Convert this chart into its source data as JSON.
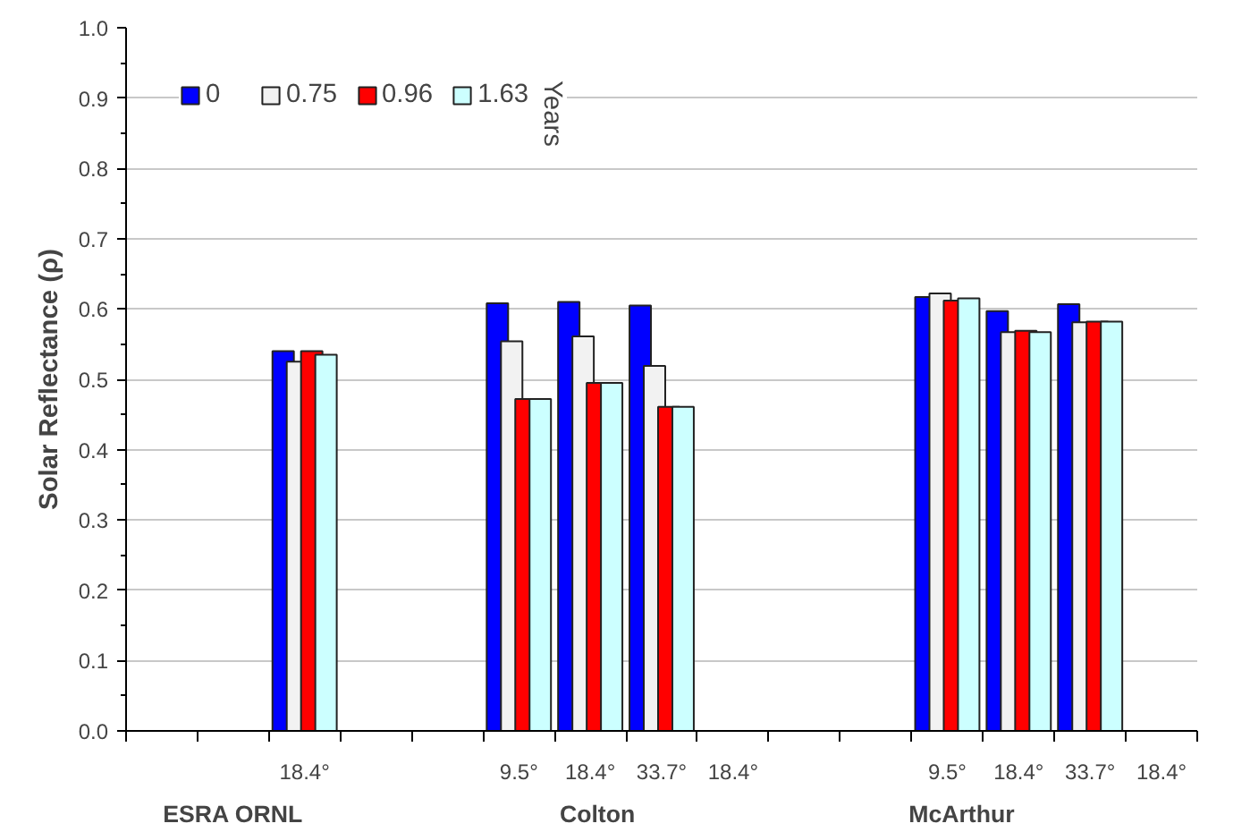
{
  "chart_data": {
    "type": "bar",
    "ylabel": "Solar Reflectance (ρ)",
    "legend_title": "Years",
    "categories": [
      null,
      null,
      "18.4°",
      null,
      null,
      "9.5°",
      "18.4°",
      "33.7°",
      "18.4°",
      null,
      null,
      "9.5°",
      "18.4°",
      "33.7°",
      "18.4°"
    ],
    "series": [
      {
        "name": "0",
        "color": "#0000ff",
        "values": [
          null,
          null,
          0.54,
          null,
          null,
          0.608,
          0.61,
          0.605,
          null,
          null,
          null,
          0.617,
          0.597,
          0.607,
          null
        ]
      },
      {
        "name": "0.75",
        "color": "#f2f2f2",
        "values": [
          null,
          null,
          0.525,
          null,
          null,
          0.554,
          0.561,
          0.519,
          null,
          null,
          null,
          0.622,
          0.567,
          0.581,
          null
        ]
      },
      {
        "name": "0.96",
        "color": "#ff0000",
        "values": [
          null,
          null,
          0.54,
          null,
          null,
          0.472,
          0.495,
          0.461,
          null,
          null,
          null,
          0.612,
          0.569,
          0.582,
          null
        ]
      },
      {
        "name": "1.63",
        "color": "#ccffff",
        "values": [
          null,
          null,
          0.535,
          null,
          null,
          0.472,
          0.495,
          0.461,
          null,
          null,
          null,
          0.615,
          0.567,
          0.582,
          null
        ]
      }
    ],
    "annotations": [
      "ESRA ORNL",
      "Colton",
      "McArthur"
    ],
    "ylim": [
      0,
      1
    ],
    "yticks": [
      {
        "value": 0,
        "label": "0.0"
      },
      {
        "value": 0.1,
        "label": "0.1"
      },
      {
        "value": 0.2,
        "label": "0.2"
      },
      {
        "value": 0.3,
        "label": "0.3"
      },
      {
        "value": 0.4,
        "label": "0.4"
      },
      {
        "value": 0.5,
        "label": "0.5"
      },
      {
        "value": 0.6,
        "label": "0.6"
      },
      {
        "value": 0.7,
        "label": "0.7"
      },
      {
        "value": 0.8,
        "label": "0.8"
      },
      {
        "value": 0.9,
        "label": "0.9"
      },
      {
        "value": 1,
        "label": "1.0"
      }
    ],
    "grid": "y",
    "legend": "top left"
  }
}
